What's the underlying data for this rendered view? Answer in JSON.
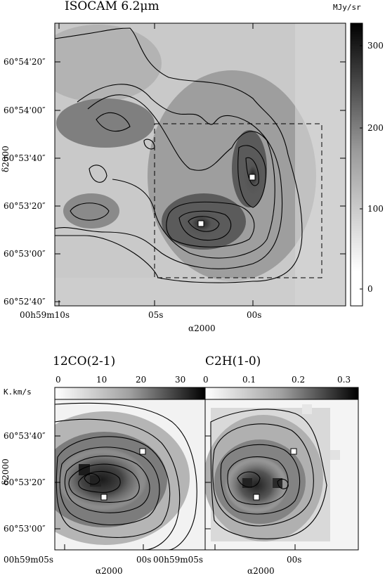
{
  "top_panel": {
    "title": "ISOCAM 6.2μm",
    "unit": "MJy/sr",
    "colorbar_ticks": [
      "300",
      "200",
      "100",
      "0"
    ],
    "y_ticks": [
      "60°54'20″",
      "60°54'00″",
      "60°53'40″",
      "60°53'20″",
      "60°53'00″",
      "60°52'40″"
    ],
    "x_ticks": [
      "00h59m10s",
      "05s",
      "00s"
    ],
    "x_label": "α2000",
    "y_label": "δ2000"
  },
  "bottom_left_panel": {
    "title": "12CO(2-1)",
    "unit": "K.km/s",
    "colorbar_ticks": [
      "0",
      "10",
      "20",
      "30"
    ],
    "y_ticks": [
      "60°53'40″",
      "60°53'20″",
      "60°53'00″"
    ],
    "x_ticks": [
      "00h59m05s",
      "00s"
    ],
    "x_label": "α2000",
    "y_label": "δ2000"
  },
  "bottom_right_panel": {
    "title": "C2H(1-0)",
    "colorbar_ticks": [
      "0",
      "0.1",
      "0.2",
      "0.3"
    ],
    "x_ticks": [
      "00h59m05s",
      "00s"
    ],
    "x_label": "α2000"
  },
  "colors": {
    "ink": "#000000",
    "marker_fill": "#ffffff"
  }
}
